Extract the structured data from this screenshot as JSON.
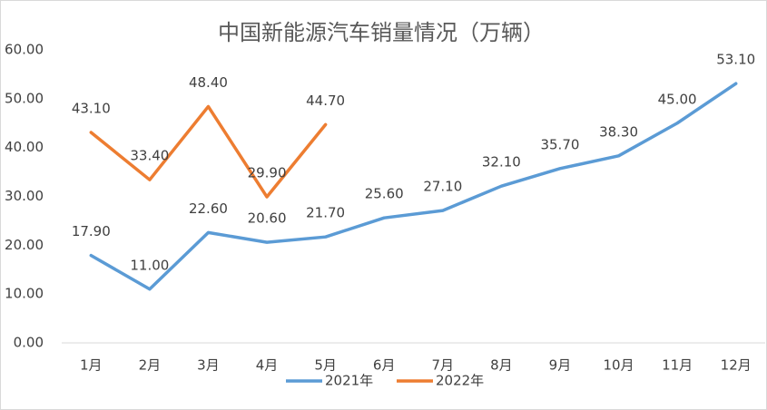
{
  "chart_data": {
    "type": "line",
    "title": "中国新能源汽车销量情况（万辆）",
    "categories": [
      "1月",
      "2月",
      "3月",
      "4月",
      "5月",
      "6月",
      "7月",
      "8月",
      "9月",
      "10月",
      "11月",
      "12月"
    ],
    "series": [
      {
        "name": "2021年",
        "color": "#5b9bd5",
        "values": [
          17.9,
          11,
          22.6,
          20.6,
          21.7,
          25.6,
          27.1,
          32.1,
          35.7,
          38.3,
          45,
          53.1
        ],
        "value_labels": [
          "17.90",
          "11.00",
          "22.60",
          "20.60",
          "21.70",
          "25.60",
          "27.10",
          "32.10",
          "35.70",
          "38.30",
          "45.00",
          "53.10"
        ]
      },
      {
        "name": "2022年",
        "color": "#ed7d31",
        "values": [
          43.1,
          33.4,
          48.4,
          29.9,
          44.7,
          null,
          null,
          null,
          null,
          null,
          null,
          null
        ],
        "value_labels": [
          "43.10",
          "33.40",
          "48.40",
          "29.90",
          "44.70",
          null,
          null,
          null,
          null,
          null,
          null,
          null
        ]
      }
    ],
    "ylim": [
      0,
      60
    ],
    "yticks": [
      {
        "value": 0,
        "label": "0.00"
      },
      {
        "value": 10,
        "label": "10.00"
      },
      {
        "value": 20,
        "label": "20.00"
      },
      {
        "value": 30,
        "label": "30.00"
      },
      {
        "value": 40,
        "label": "40.00"
      },
      {
        "value": 50,
        "label": "50.00"
      },
      {
        "value": 60,
        "label": "60.00"
      }
    ],
    "grid": false,
    "legend": "bottom"
  }
}
